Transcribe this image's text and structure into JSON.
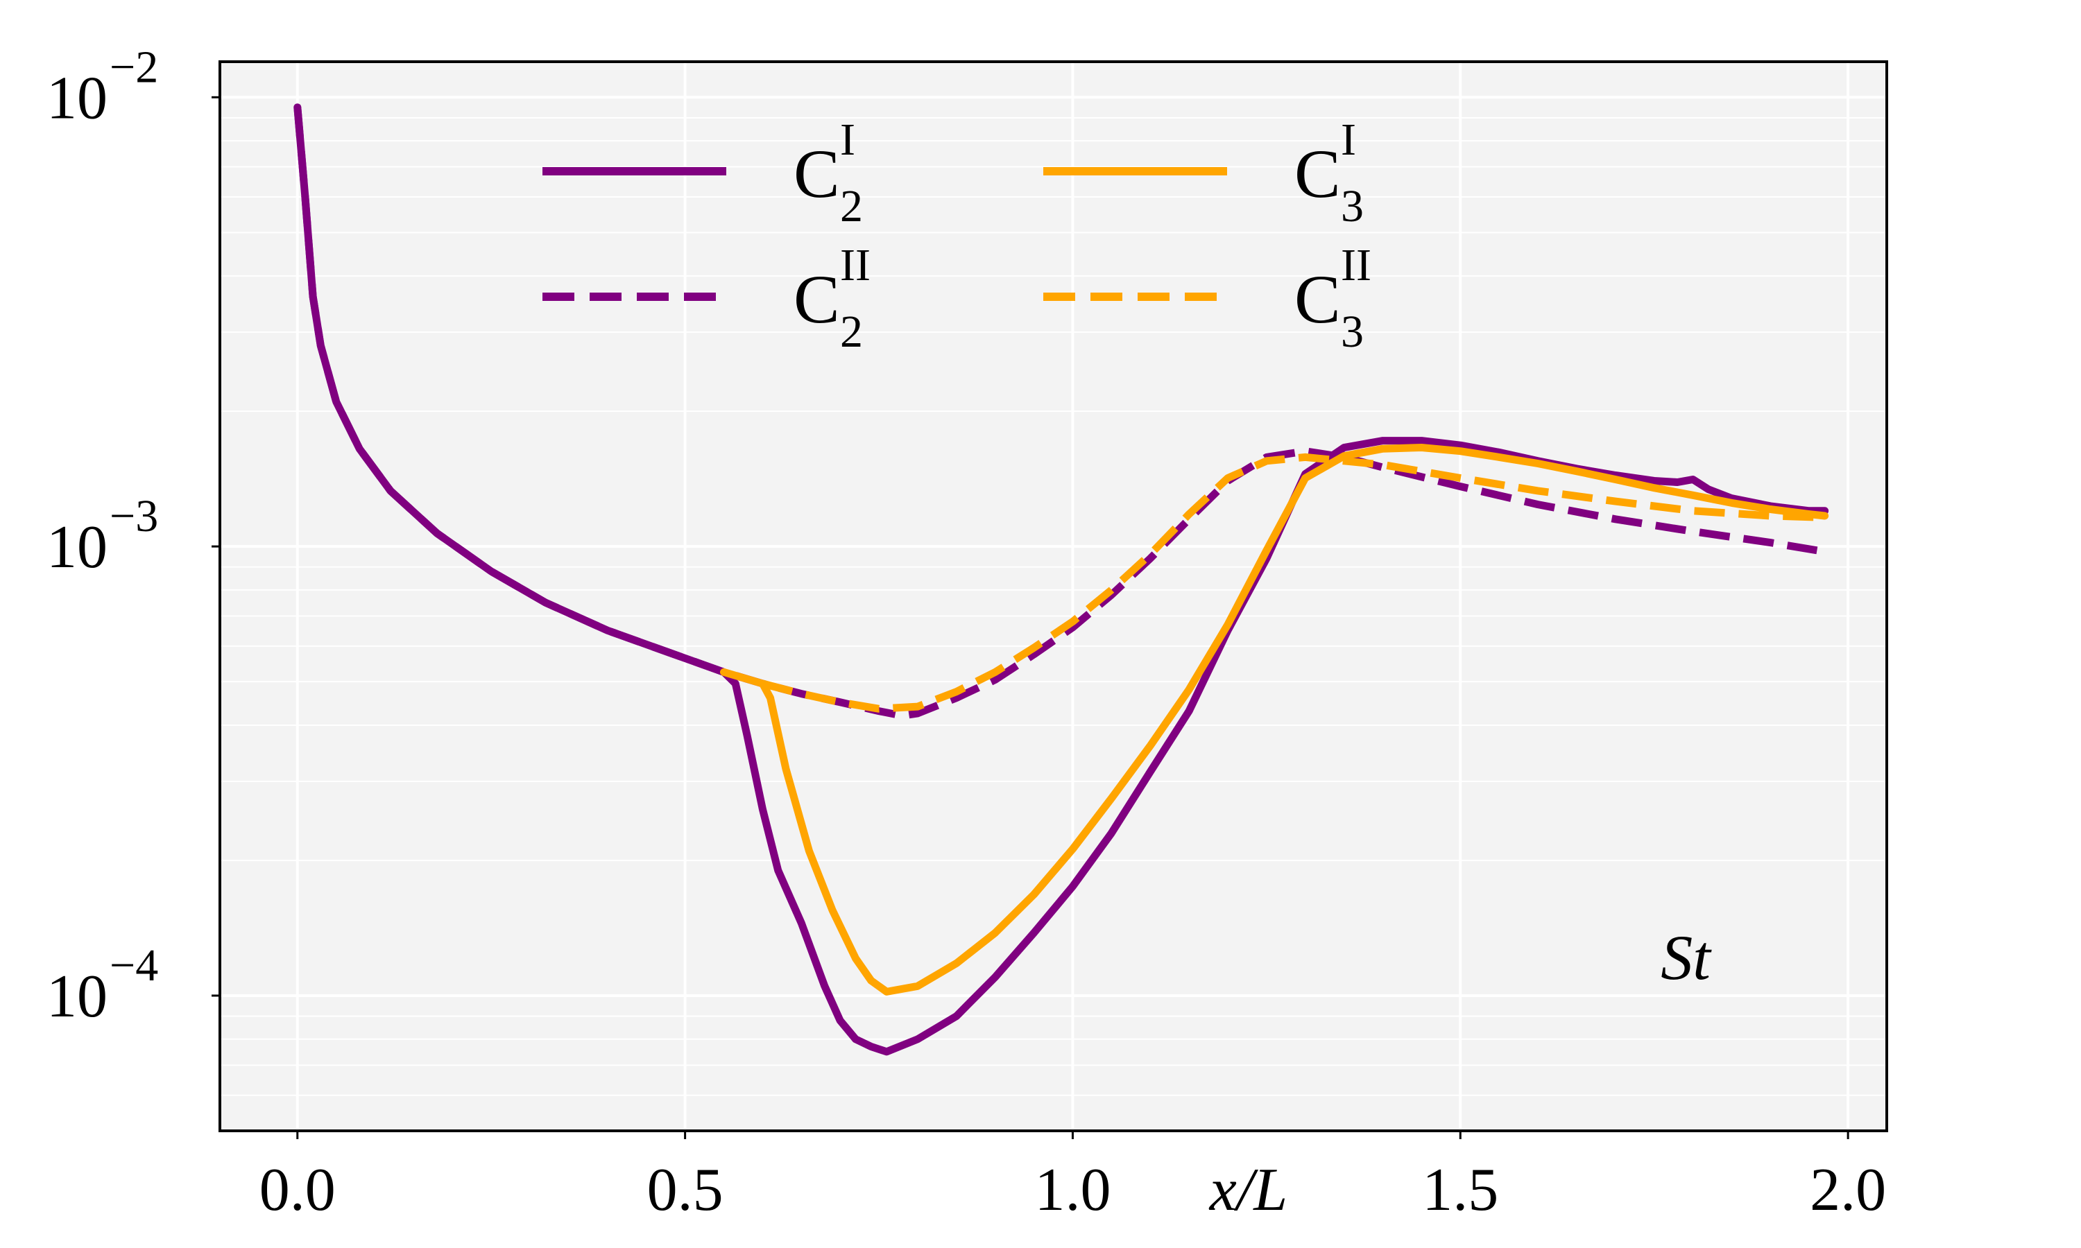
{
  "chart_data": {
    "type": "line",
    "xlabel": "x/L",
    "ylabel": "",
    "annotation": "St",
    "xlim": [
      -0.1,
      2.05
    ],
    "ylim": [
      5e-05,
      0.012
    ],
    "yscale": "log",
    "grid": true,
    "legend_position": "top-center",
    "x_ticks": [
      {
        "value": 0.0,
        "label": "0.0"
      },
      {
        "value": 0.5,
        "label": "0.5"
      },
      {
        "value": 1.0,
        "label": "1.0"
      },
      {
        "value": 1.5,
        "label": "1.5"
      },
      {
        "value": 2.0,
        "label": "2.0"
      }
    ],
    "y_ticks": [
      {
        "value": 0.01,
        "base": "10",
        "exponent": "−2"
      },
      {
        "value": 0.001,
        "base": "10",
        "exponent": "−3"
      },
      {
        "value": 0.0001,
        "base": "10",
        "exponent": "−4"
      }
    ],
    "series": [
      {
        "name": "C2 I",
        "base": "C",
        "sub": "2",
        "sup": "I",
        "color": "#800080",
        "dash": "solid",
        "x": [
          0.0,
          0.01,
          0.02,
          0.03,
          0.05,
          0.08,
          0.12,
          0.18,
          0.25,
          0.32,
          0.4,
          0.48,
          0.55,
          0.565,
          0.58,
          0.6,
          0.62,
          0.65,
          0.68,
          0.7,
          0.72,
          0.74,
          0.76,
          0.8,
          0.85,
          0.9,
          0.95,
          1.0,
          1.05,
          1.1,
          1.15,
          1.2,
          1.25,
          1.3,
          1.35,
          1.4,
          1.45,
          1.5,
          1.55,
          1.6,
          1.65,
          1.7,
          1.75,
          1.78,
          1.8,
          1.82,
          1.85,
          1.9,
          1.95,
          1.97
        ],
        "y": [
          0.0095,
          0.006,
          0.0036,
          0.0028,
          0.0021,
          0.00165,
          0.00133,
          0.00107,
          0.00088,
          0.00075,
          0.00065,
          0.00058,
          0.000525,
          0.000495,
          0.00038,
          0.00026,
          0.00019,
          0.000145,
          0.000105,
          8.8e-05,
          8e-05,
          7.7e-05,
          7.5e-05,
          8e-05,
          9e-05,
          0.00011,
          0.000138,
          0.000175,
          0.00023,
          0.000315,
          0.00043,
          0.00065,
          0.00094,
          0.00145,
          0.00166,
          0.00172,
          0.00172,
          0.00168,
          0.00162,
          0.00155,
          0.00149,
          0.00144,
          0.0014,
          0.00139,
          0.00141,
          0.00134,
          0.00128,
          0.00123,
          0.0012,
          0.0012
        ]
      },
      {
        "name": "C2 II",
        "base": "C",
        "sub": "2",
        "sup": "II",
        "color": "#800080",
        "dash": "dashed",
        "x": [
          0.0,
          0.01,
          0.02,
          0.03,
          0.05,
          0.08,
          0.12,
          0.18,
          0.25,
          0.32,
          0.4,
          0.48,
          0.55,
          0.6,
          0.65,
          0.7,
          0.75,
          0.78,
          0.8,
          0.85,
          0.9,
          0.95,
          1.0,
          1.05,
          1.1,
          1.15,
          1.2,
          1.25,
          1.3,
          1.35,
          1.4,
          1.5,
          1.6,
          1.7,
          1.8,
          1.9,
          1.96
        ],
        "y": [
          0.0095,
          0.006,
          0.0036,
          0.0028,
          0.0021,
          0.00165,
          0.00133,
          0.00107,
          0.00088,
          0.00075,
          0.00065,
          0.00058,
          0.000525,
          0.000495,
          0.00047,
          0.00045,
          0.00043,
          0.00042,
          0.000425,
          0.00046,
          0.000505,
          0.000575,
          0.00066,
          0.00078,
          0.00094,
          0.00115,
          0.0014,
          0.00158,
          0.00163,
          0.00158,
          0.0015,
          0.00136,
          0.00124,
          0.00115,
          0.00108,
          0.00102,
          0.00098
        ]
      },
      {
        "name": "C3 I",
        "base": "C",
        "sub": "3",
        "sup": "I",
        "color": "#FFA500",
        "dash": "solid",
        "x": [
          0.55,
          0.6,
          0.61,
          0.63,
          0.66,
          0.69,
          0.72,
          0.74,
          0.76,
          0.8,
          0.85,
          0.9,
          0.95,
          1.0,
          1.05,
          1.1,
          1.15,
          1.2,
          1.25,
          1.3,
          1.35,
          1.4,
          1.45,
          1.5,
          1.55,
          1.6,
          1.65,
          1.7,
          1.75,
          1.8,
          1.85,
          1.9,
          1.95,
          1.97
        ],
        "y": [
          0.000525,
          0.000495,
          0.00046,
          0.00032,
          0.00021,
          0.000155,
          0.000121,
          0.000108,
          0.000102,
          0.000105,
          0.000118,
          0.000138,
          0.000168,
          0.000212,
          0.000275,
          0.00036,
          0.00048,
          0.00067,
          0.00098,
          0.00142,
          0.00159,
          0.00165,
          0.00166,
          0.00163,
          0.00158,
          0.00153,
          0.00147,
          0.00141,
          0.00135,
          0.0013,
          0.00125,
          0.00121,
          0.00118,
          0.00117
        ]
      },
      {
        "name": "C3 II",
        "base": "C",
        "sub": "3",
        "sup": "II",
        "color": "#FFA500",
        "dash": "dashed",
        "x": [
          0.6,
          0.65,
          0.7,
          0.75,
          0.8,
          0.85,
          0.9,
          0.95,
          1.0,
          1.05,
          1.1,
          1.15,
          1.2,
          1.25,
          1.3,
          1.35,
          1.4,
          1.5,
          1.6,
          1.7,
          1.8,
          1.9,
          1.97
        ],
        "y": [
          0.000495,
          0.00047,
          0.00045,
          0.000435,
          0.00044,
          0.000475,
          0.000525,
          0.000595,
          0.00068,
          0.0008,
          0.00096,
          0.00118,
          0.00142,
          0.00155,
          0.00158,
          0.00155,
          0.00152,
          0.00142,
          0.00133,
          0.00126,
          0.0012,
          0.00117,
          0.00116
        ]
      }
    ]
  }
}
